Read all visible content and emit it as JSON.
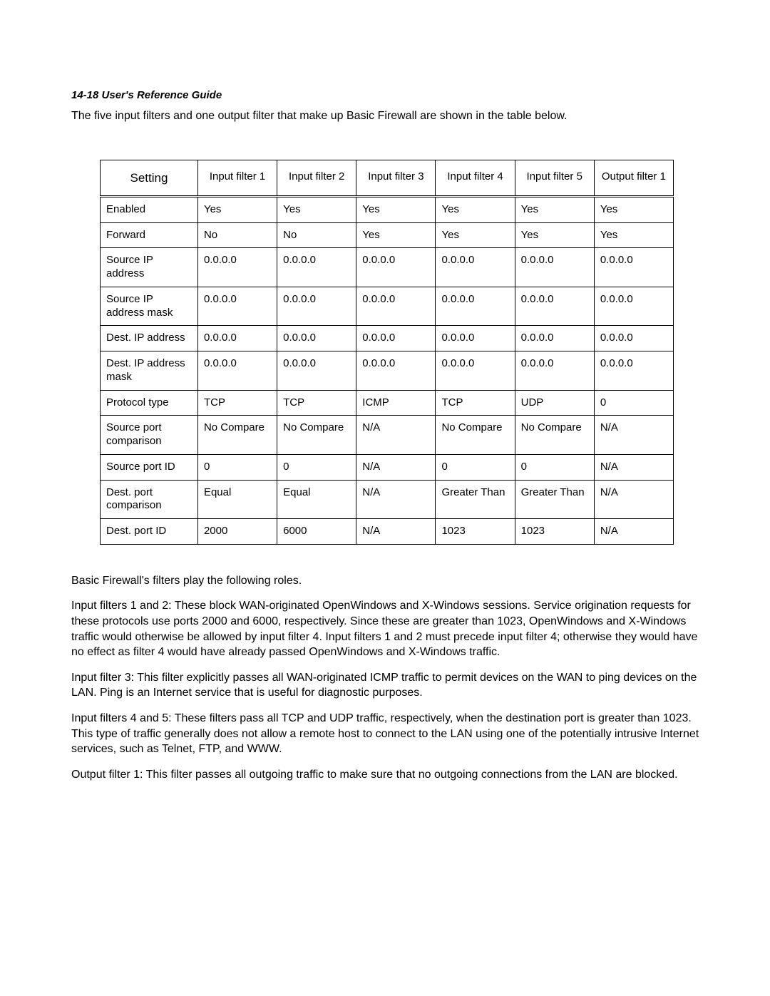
{
  "header": "14-18  User's Reference Guide",
  "intro": "The five input filters and one output filter that make up Basic Firewall are shown in the table below.",
  "table": {
    "columns": [
      "Setting",
      "Input filter 1",
      "Input filter 2",
      "Input filter 3",
      "Input filter 4",
      "Input filter 5",
      "Output filter 1"
    ],
    "rows": [
      [
        "Enabled",
        "Yes",
        "Yes",
        "Yes",
        "Yes",
        "Yes",
        "Yes"
      ],
      [
        "Forward",
        "No",
        "No",
        "Yes",
        "Yes",
        "Yes",
        "Yes"
      ],
      [
        "Source IP address",
        "0.0.0.0",
        "0.0.0.0",
        "0.0.0.0",
        "0.0.0.0",
        "0.0.0.0",
        "0.0.0.0"
      ],
      [
        "Source IP address mask",
        "0.0.0.0",
        "0.0.0.0",
        "0.0.0.0",
        "0.0.0.0",
        "0.0.0.0",
        "0.0.0.0"
      ],
      [
        "Dest. IP address",
        "0.0.0.0",
        "0.0.0.0",
        "0.0.0.0",
        "0.0.0.0",
        "0.0.0.0",
        "0.0.0.0"
      ],
      [
        "Dest. IP address mask",
        "0.0.0.0",
        "0.0.0.0",
        "0.0.0.0",
        "0.0.0.0",
        "0.0.0.0",
        "0.0.0.0"
      ],
      [
        "Protocol type",
        "TCP",
        "TCP",
        "ICMP",
        "TCP",
        "UDP",
        "0"
      ],
      [
        "Source port comparison",
        "No Compare",
        "No Compare",
        "N/A",
        "No Compare",
        "No Compare",
        "N/A"
      ],
      [
        "Source port ID",
        "0",
        "0",
        "N/A",
        "0",
        "0",
        "N/A"
      ],
      [
        "Dest. port comparison",
        "Equal",
        "Equal",
        "N/A",
        "Greater Than",
        "Greater Than",
        "N/A"
      ],
      [
        "Dest. port ID",
        "2000",
        "6000",
        "N/A",
        "1023",
        "1023",
        "N/A"
      ]
    ]
  },
  "paragraphs": [
    "Basic Firewall's filters play the following roles.",
    "Input filters 1 and 2: These block WAN-originated OpenWindows and X-Windows sessions. Service origination requests for these protocols use ports 2000 and 6000, respectively. Since these are greater than 1023, OpenWindows and X-Windows traffic would otherwise be allowed by input filter 4. Input filters 1 and 2 must precede input filter 4; otherwise they would have no effect as filter 4 would have already passed OpenWindows and X-Windows traffic.",
    "Input filter 3: This filter explicitly passes all WAN-originated ICMP traffic to permit devices on the WAN to ping devices on the LAN. Ping is an Internet service that is useful for diagnostic purposes.",
    "Input filters 4 and 5: These filters pass all TCP and UDP traffic, respectively, when the destination port is greater than 1023. This type of traffic generally does not allow a remote host to connect to the LAN using one of the potentially intrusive Internet services, such as Telnet, FTP, and WWW.",
    "Output filter 1: This filter passes all outgoing traffic to make sure that no outgoing connections from the LAN are blocked."
  ]
}
